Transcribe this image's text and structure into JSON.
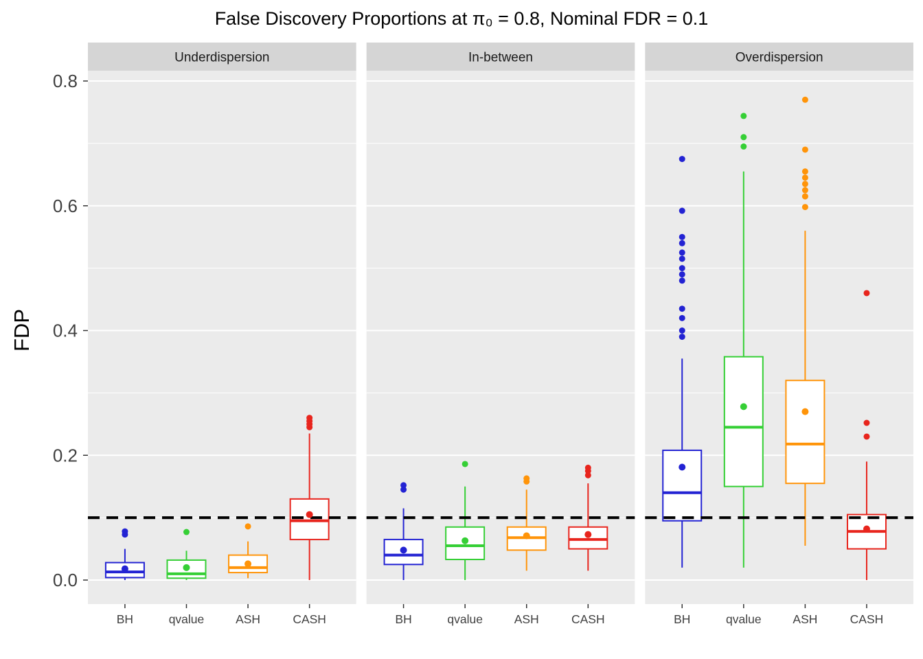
{
  "title": "False Discovery Proportions at π₀ = 0.8, Nominal FDR = 0.1",
  "chart_data": {
    "type": "boxplot",
    "title": "False Discovery Proportions at π₀ = 0.8, Nominal FDR = 0.1",
    "ylabel": "FDP",
    "ylim": [
      -0.04,
      0.82
    ],
    "yticks": [
      0,
      0.2,
      0.4,
      0.6,
      0.8
    ],
    "ytick_labels": [
      "0.0",
      "0.2",
      "0.4",
      "0.6",
      "0.8"
    ],
    "grid": true,
    "legend": "none",
    "nominal_fdr": 0.1,
    "reference_line": {
      "value": 0.1,
      "style": "dashed",
      "color": "#000000"
    },
    "methods": [
      "BH",
      "qvalue",
      "ASH",
      "CASH"
    ],
    "colors": {
      "BH": "#2323D3",
      "qvalue": "#35CF35",
      "ASH": "#FF9409",
      "CASH": "#E8251D"
    },
    "panel_bg": "#EBEBEB",
    "strip_bg": "#D5D5D5",
    "grid_color": "#FFFFFF",
    "facets": [
      {
        "label": "Underdispersion",
        "boxes": [
          {
            "method": "BH",
            "whisker_low": 0.0,
            "q1": 0.004,
            "median": 0.013,
            "q3": 0.028,
            "whisker_high": 0.05,
            "mean": 0.018,
            "outliers": [
              0.073,
              0.078
            ]
          },
          {
            "method": "qvalue",
            "whisker_low": 0.0,
            "q1": 0.003,
            "median": 0.01,
            "q3": 0.032,
            "whisker_high": 0.047,
            "mean": 0.02,
            "outliers": [
              0.077
            ]
          },
          {
            "method": "ASH",
            "whisker_low": 0.003,
            "q1": 0.012,
            "median": 0.02,
            "q3": 0.04,
            "whisker_high": 0.062,
            "mean": 0.026,
            "outliers": [
              0.086
            ]
          },
          {
            "method": "CASH",
            "whisker_low": 0.0,
            "q1": 0.065,
            "median": 0.095,
            "q3": 0.13,
            "whisker_high": 0.235,
            "mean": 0.105,
            "outliers": [
              0.245,
              0.25,
              0.255,
              0.26
            ]
          }
        ]
      },
      {
        "label": "In-between",
        "boxes": [
          {
            "method": "BH",
            "whisker_low": 0.0,
            "q1": 0.025,
            "median": 0.04,
            "q3": 0.065,
            "whisker_high": 0.115,
            "mean": 0.048,
            "outliers": [
              0.145,
              0.152
            ]
          },
          {
            "method": "qvalue",
            "whisker_low": 0.0,
            "q1": 0.033,
            "median": 0.055,
            "q3": 0.085,
            "whisker_high": 0.15,
            "mean": 0.063,
            "outliers": [
              0.186
            ]
          },
          {
            "method": "ASH",
            "whisker_low": 0.015,
            "q1": 0.048,
            "median": 0.068,
            "q3": 0.085,
            "whisker_high": 0.145,
            "mean": 0.071,
            "outliers": [
              0.158,
              0.163
            ]
          },
          {
            "method": "CASH",
            "whisker_low": 0.015,
            "q1": 0.05,
            "median": 0.065,
            "q3": 0.085,
            "whisker_high": 0.155,
            "mean": 0.073,
            "outliers": [
              0.168,
              0.175,
              0.18
            ]
          }
        ]
      },
      {
        "label": "Overdispersion",
        "boxes": [
          {
            "method": "BH",
            "whisker_low": 0.02,
            "q1": 0.095,
            "median": 0.14,
            "q3": 0.208,
            "whisker_high": 0.355,
            "mean": 0.181,
            "outliers": [
              0.39,
              0.4,
              0.42,
              0.435,
              0.48,
              0.49,
              0.5,
              0.515,
              0.525,
              0.54,
              0.55,
              0.592,
              0.675
            ]
          },
          {
            "method": "qvalue",
            "whisker_low": 0.02,
            "q1": 0.15,
            "median": 0.245,
            "q3": 0.358,
            "whisker_high": 0.655,
            "mean": 0.278,
            "outliers": [
              0.695,
              0.71,
              0.744
            ]
          },
          {
            "method": "ASH",
            "whisker_low": 0.055,
            "q1": 0.155,
            "median": 0.218,
            "q3": 0.32,
            "whisker_high": 0.56,
            "mean": 0.27,
            "outliers": [
              0.598,
              0.615,
              0.625,
              0.635,
              0.645,
              0.655,
              0.69,
              0.77
            ]
          },
          {
            "method": "CASH",
            "whisker_low": 0.0,
            "q1": 0.05,
            "median": 0.078,
            "q3": 0.105,
            "whisker_high": 0.19,
            "mean": 0.082,
            "outliers": [
              0.23,
              0.252,
              0.46
            ]
          }
        ]
      }
    ]
  }
}
